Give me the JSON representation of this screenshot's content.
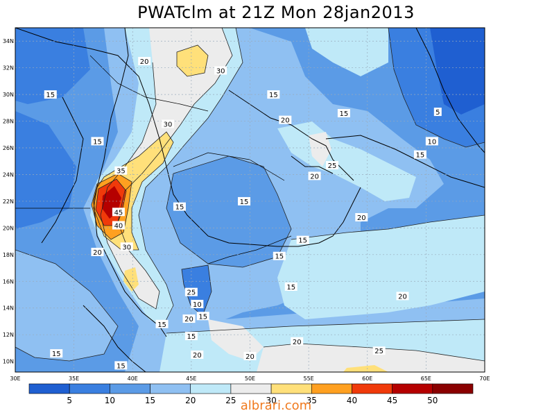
{
  "title": "PWATclm at 21Z Mon 28jan2013",
  "watermark": "albrari.com",
  "lat_labels": [
    "34N",
    "32N",
    "30N",
    "28N",
    "26N",
    "24N",
    "22N",
    "20N",
    "18N",
    "16N",
    "14N",
    "12N",
    "10N"
  ],
  "lon_labels": [
    "30E",
    "35E",
    "40E",
    "45E",
    "50E",
    "55E",
    "60E",
    "65E",
    "70E"
  ],
  "colorbar": {
    "ticks": [
      "5",
      "10",
      "15",
      "20",
      "25",
      "30",
      "35",
      "40",
      "45",
      "50"
    ],
    "colors": [
      "#1f5fd1",
      "#3a7fe0",
      "#5b9be6",
      "#8fc0f2",
      "#bfe9f8",
      "#ececec",
      "#ffe07a",
      "#ffa020",
      "#f03a0a",
      "#b50000",
      "#8a0000"
    ]
  },
  "contour_labels": [
    {
      "text": "20",
      "lon": 41.0,
      "lat": 32.5
    },
    {
      "text": "30",
      "lon": 47.5,
      "lat": 31.8
    },
    {
      "text": "15",
      "lon": 33.0,
      "lat": 30.0
    },
    {
      "text": "15",
      "lon": 52.0,
      "lat": 30.0
    },
    {
      "text": "15",
      "lon": 58.0,
      "lat": 28.6
    },
    {
      "text": "20",
      "lon": 53.0,
      "lat": 28.1
    },
    {
      "text": "5",
      "lon": 66.0,
      "lat": 28.7
    },
    {
      "text": "30",
      "lon": 43.0,
      "lat": 27.8
    },
    {
      "text": "15",
      "lon": 37.0,
      "lat": 26.5
    },
    {
      "text": "10",
      "lon": 65.5,
      "lat": 26.5
    },
    {
      "text": "15",
      "lon": 64.5,
      "lat": 25.5
    },
    {
      "text": "25",
      "lon": 57.0,
      "lat": 24.7
    },
    {
      "text": "35",
      "lon": 39.0,
      "lat": 24.3
    },
    {
      "text": "20",
      "lon": 55.5,
      "lat": 23.9
    },
    {
      "text": "15",
      "lon": 44.0,
      "lat": 21.6
    },
    {
      "text": "15",
      "lon": 49.5,
      "lat": 22.0
    },
    {
      "text": "45",
      "lon": 38.8,
      "lat": 21.2
    },
    {
      "text": "40",
      "lon": 38.8,
      "lat": 20.2
    },
    {
      "text": "20",
      "lon": 59.5,
      "lat": 20.8
    },
    {
      "text": "15",
      "lon": 54.5,
      "lat": 19.1
    },
    {
      "text": "30",
      "lon": 39.5,
      "lat": 18.6
    },
    {
      "text": "20",
      "lon": 37.0,
      "lat": 18.2
    },
    {
      "text": "15",
      "lon": 52.5,
      "lat": 17.9
    },
    {
      "text": "25",
      "lon": 45.0,
      "lat": 15.2
    },
    {
      "text": "15",
      "lon": 53.5,
      "lat": 15.6
    },
    {
      "text": "20",
      "lon": 63.0,
      "lat": 14.9
    },
    {
      "text": "10",
      "lon": 45.5,
      "lat": 14.3
    },
    {
      "text": "15",
      "lon": 46.0,
      "lat": 13.4
    },
    {
      "text": "20",
      "lon": 44.8,
      "lat": 13.2
    },
    {
      "text": "15",
      "lon": 42.5,
      "lat": 12.8
    },
    {
      "text": "15",
      "lon": 45.0,
      "lat": 11.9
    },
    {
      "text": "20",
      "lon": 54.0,
      "lat": 11.5
    },
    {
      "text": "15",
      "lon": 33.5,
      "lat": 10.6
    },
    {
      "text": "20",
      "lon": 45.5,
      "lat": 10.5
    },
    {
      "text": "20",
      "lon": 50.0,
      "lat": 10.4
    },
    {
      "text": "25",
      "lon": 61.0,
      "lat": 10.8
    },
    {
      "text": "15",
      "lon": 39.0,
      "lat": 9.7
    }
  ]
}
